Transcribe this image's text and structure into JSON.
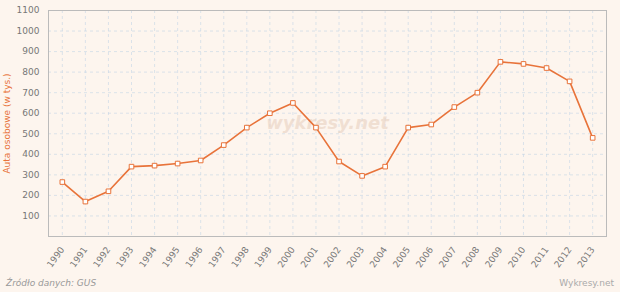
{
  "chart_data": {
    "type": "line",
    "x": [
      1990,
      1991,
      1992,
      1993,
      1994,
      1995,
      1996,
      1997,
      1998,
      1999,
      2000,
      2001,
      2002,
      2003,
      2004,
      2005,
      2006,
      2007,
      2008,
      2009,
      2010,
      2011,
      2012,
      2013
    ],
    "values": [
      265,
      170,
      220,
      340,
      345,
      355,
      370,
      445,
      530,
      600,
      650,
      530,
      365,
      295,
      340,
      530,
      545,
      630,
      700,
      850,
      840,
      820,
      755,
      480
    ],
    "color": "#e8733a",
    "marker": "square",
    "y_label": "Auta osobowe (w tys.)",
    "annotations": [
      "wykresy.net",
      "Źródło danych: GUS",
      "Wykresy.net"
    ],
    "xlim": [
      1989.4,
      2013.6
    ],
    "xticks": [
      1990,
      1991,
      1992,
      1993,
      1994,
      1995,
      1996,
      1997,
      1998,
      1999,
      2000,
      2001,
      2002,
      2003,
      2004,
      2005,
      2006,
      2007,
      2008,
      2009,
      2010,
      2011,
      2012,
      2013
    ],
    "ylim": [
      0,
      1100
    ],
    "yticks": [
      100,
      200,
      300,
      400,
      500,
      600,
      700,
      800,
      900,
      1000,
      1100
    ],
    "grid": true
  }
}
